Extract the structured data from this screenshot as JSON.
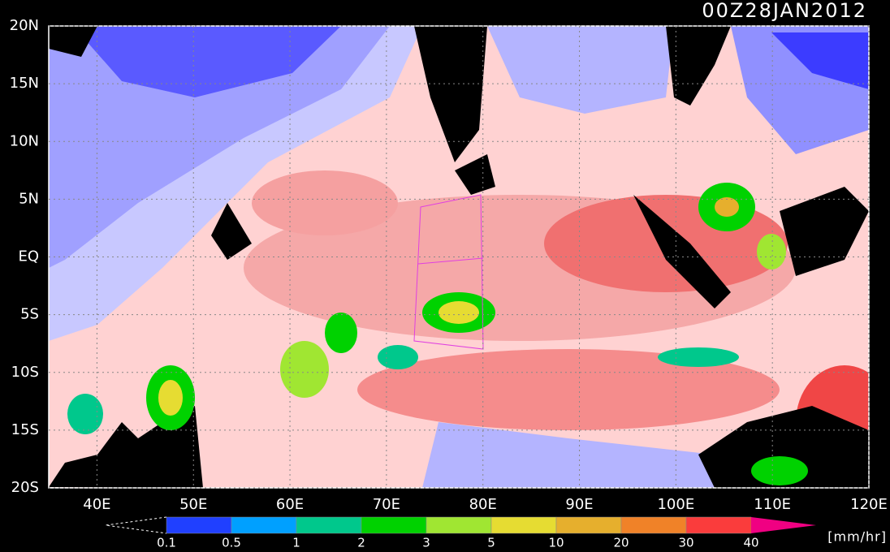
{
  "header": {
    "title": "00Z28JAN2012"
  },
  "map": {
    "lonlim": [
      35,
      120
    ],
    "latlim": [
      -20,
      20
    ],
    "lat_ticks": [
      {
        "value": 20,
        "label": "20N"
      },
      {
        "value": 15,
        "label": "15N"
      },
      {
        "value": 10,
        "label": "10N"
      },
      {
        "value": 5,
        "label": "5N"
      },
      {
        "value": 0,
        "label": "EQ"
      },
      {
        "value": -5,
        "label": "5S"
      },
      {
        "value": -10,
        "label": "10S"
      },
      {
        "value": -15,
        "label": "15S"
      },
      {
        "value": -20,
        "label": "20S"
      }
    ],
    "lon_ticks": [
      {
        "value": 40,
        "label": "40E"
      },
      {
        "value": 50,
        "label": "50E"
      },
      {
        "value": 60,
        "label": "60E"
      },
      {
        "value": 70,
        "label": "70E"
      },
      {
        "value": 80,
        "label": "80E"
      },
      {
        "value": 90,
        "label": "90E"
      },
      {
        "value": 100,
        "label": "100E"
      },
      {
        "value": 110,
        "label": "110E"
      },
      {
        "value": 120,
        "label": "120E"
      }
    ]
  },
  "colorbar": {
    "levels": [
      0.1,
      0.5,
      1,
      2,
      3,
      5,
      10,
      20,
      30,
      40
    ],
    "colors": [
      "#2040ff",
      "#00a0ff",
      "#00c88c",
      "#00d200",
      "#a0e632",
      "#e6dc32",
      "#e6af2d",
      "#f08228",
      "#fa3c3c"
    ],
    "over_color": "#f00082",
    "unit": "[mm/hr]"
  }
}
